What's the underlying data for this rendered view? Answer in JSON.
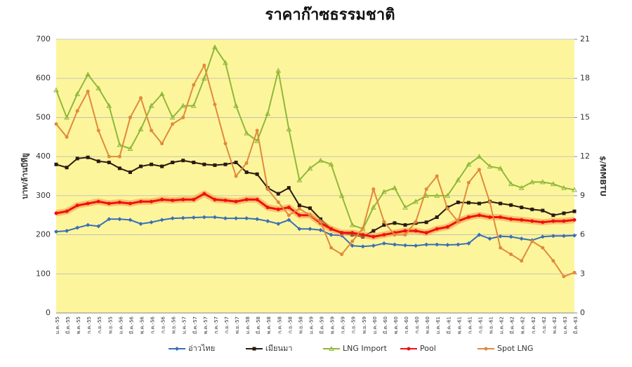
{
  "chart_data": {
    "type": "line",
    "title": "ราคาก๊าซธรรมชาติ",
    "y_label": "บาท/ล้านบีทียู",
    "y2_label": "$/MMBTU",
    "categories": [
      "ม.ค.-55",
      "มี.ค.-55",
      "พ.ค.-55",
      "ก.ค.-55",
      "ก.ย.-55",
      "พ.ย.-55",
      "ม.ค.-56",
      "มี.ค.-56",
      "พ.ค.-56",
      "ก.ค.-56",
      "ก.ย.-56",
      "พ.ย.-56",
      "ม.ค.-57",
      "มี.ค.-57",
      "พ.ค.-57",
      "ก.ค.-57",
      "ก.ย.-57",
      "พ.ย.-57",
      "ม.ค.-58",
      "มี.ค.-58",
      "พ.ค.-58",
      "ก.ค.-58",
      "ก.ย.-58",
      "พ.ย.-58",
      "ม.ค.-59",
      "มี.ค.-59",
      "พ.ค.-59",
      "ก.ค.-59",
      "ก.ย.-59",
      "พ.ย.-59",
      "ม.ค.-60",
      "มี.ค.-60",
      "พ.ค.-60",
      "ก.ค.-60",
      "ก.ย.-60",
      "พ.ย.-60",
      "ม.ค.-61",
      "มี.ค.-61",
      "พ.ค.-61",
      "ก.ค.-61",
      "ก.ย.-61",
      "พ.ย.-61",
      "ม.ค.-62",
      "มี.ค.-62",
      "พ.ค.-62",
      "ก.ค.-62",
      "ก.ย.-62",
      "พ.ย.-62",
      "ม.ค.-63",
      "มี.ค.-63"
    ],
    "series": [
      {
        "name": "อ่าวไทย",
        "color": "#3a6fb5",
        "marker": "diamond",
        "values": [
          208,
          210,
          218,
          225,
          222,
          240,
          240,
          238,
          228,
          232,
          238,
          242,
          243,
          244,
          245,
          245,
          242,
          242,
          242,
          240,
          235,
          228,
          238,
          215,
          215,
          212,
          200,
          198,
          172,
          170,
          172,
          178,
          175,
          173,
          172,
          175,
          175,
          174,
          175,
          178,
          200,
          190,
          196,
          195,
          190,
          186,
          195,
          197,
          197,
          198
        ]
      },
      {
        "name": "เมียนมา",
        "color": "#2b1a10",
        "marker": "square",
        "values": [
          380,
          372,
          395,
          398,
          388,
          385,
          370,
          360,
          375,
          380,
          375,
          385,
          390,
          385,
          380,
          378,
          380,
          385,
          360,
          355,
          320,
          305,
          320,
          275,
          268,
          240,
          215,
          205,
          200,
          195,
          210,
          225,
          230,
          225,
          230,
          232,
          245,
          270,
          283,
          282,
          280,
          285,
          280,
          276,
          270,
          265,
          262,
          250,
          255,
          260
        ]
      },
      {
        "name": "LNG Import",
        "color": "#8fb83a",
        "marker": "triangle",
        "values": [
          570,
          500,
          560,
          610,
          575,
          530,
          430,
          420,
          470,
          530,
          560,
          500,
          530,
          530,
          600,
          680,
          640,
          530,
          460,
          440,
          510,
          620,
          470,
          340,
          370,
          390,
          380,
          300,
          225,
          215,
          270,
          310,
          320,
          270,
          285,
          300,
          300,
          300,
          340,
          380,
          400,
          375,
          370,
          330,
          320,
          335,
          335,
          330,
          320,
          315
        ]
      },
      {
        "name": "Pool",
        "color": "#f01010",
        "marker": "circle",
        "values": [
          255,
          260,
          275,
          280,
          285,
          280,
          283,
          280,
          285,
          285,
          290,
          288,
          290,
          290,
          305,
          290,
          288,
          285,
          290,
          290,
          270,
          265,
          270,
          250,
          250,
          230,
          215,
          205,
          205,
          200,
          195,
          200,
          205,
          210,
          210,
          205,
          215,
          220,
          235,
          245,
          250,
          245,
          245,
          240,
          238,
          235,
          232,
          235,
          235,
          238
        ]
      },
      {
        "name": "Spot LNG",
        "color": "#e08a3c",
        "marker": "circle",
        "axis": "y2",
        "values": [
          14.5,
          13.5,
          15.5,
          17,
          14,
          12,
          12,
          15,
          16.5,
          14,
          13,
          14.5,
          15,
          17.5,
          19,
          16,
          13,
          10.5,
          11.5,
          14,
          9.5,
          8.5,
          7.5,
          8,
          7.5,
          7,
          5,
          4.5,
          5.5,
          6.5,
          9.5,
          7,
          6,
          6,
          7,
          9.5,
          10.5,
          8,
          7,
          10,
          11,
          8.5,
          5,
          4.5,
          4,
          5.5,
          5,
          4,
          2.8,
          3.1
        ]
      }
    ],
    "ylim": [
      0,
      700
    ],
    "yticks": [
      0,
      100,
      200,
      300,
      400,
      500,
      600,
      700
    ],
    "y2lim": [
      0,
      21
    ],
    "y2ticks": [
      0,
      3,
      6,
      9,
      12,
      15,
      18,
      21
    ],
    "grid": true,
    "legend": "bottom",
    "background": "#fdf59c"
  }
}
